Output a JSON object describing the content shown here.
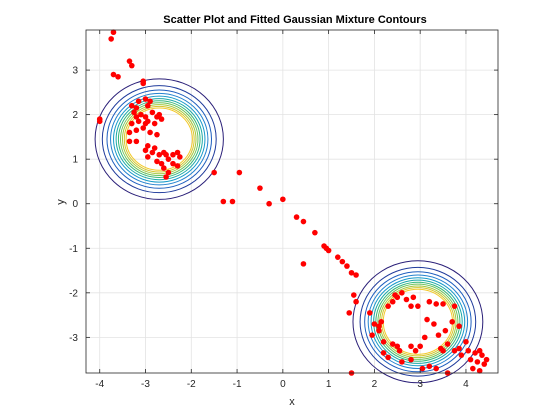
{
  "chart_data": {
    "type": "scatter",
    "title": "Scatter Plot and Fitted Gaussian Mixture Contours",
    "xlabel": "x",
    "ylabel": "y",
    "xlim": [
      -4.3,
      4.7
    ],
    "ylim": [
      -3.8,
      3.9
    ],
    "xticks": [
      -4,
      -3,
      -2,
      -1,
      0,
      1,
      2,
      3,
      4
    ],
    "yticks": [
      -3,
      -2,
      -1,
      0,
      1,
      2,
      3
    ],
    "grid": true,
    "colors": {
      "points": "#ff0000",
      "axes": "#262626",
      "grid": "#e3e3e3"
    },
    "contour_levels": [
      {
        "value": 0.01,
        "color": "#2a1f78"
      },
      {
        "value": 0.02,
        "color": "#1f3a9b"
      },
      {
        "value": 0.03,
        "color": "#1f5fbf"
      },
      {
        "value": 0.04,
        "color": "#2382cf"
      },
      {
        "value": 0.05,
        "color": "#189bc9"
      },
      {
        "value": 0.06,
        "color": "#1aa9a6"
      },
      {
        "value": 0.07,
        "color": "#35b779"
      },
      {
        "value": 0.08,
        "color": "#6cc25a"
      },
      {
        "value": 0.09,
        "color": "#a5c93e"
      },
      {
        "value": 0.1,
        "color": "#d6c62f"
      },
      {
        "value": 0.11,
        "color": "#f2c92a"
      }
    ],
    "components": [
      {
        "weight": 0.48,
        "mean": [
          -2.7,
          1.45
        ],
        "cov": [
          [
            0.3,
            0.0
          ],
          [
            0.0,
            0.28
          ]
        ]
      },
      {
        "weight": 0.52,
        "mean": [
          2.95,
          -2.65
        ],
        "cov": [
          [
            0.3,
            0.0
          ],
          [
            0.0,
            0.28
          ]
        ]
      }
    ],
    "series": [
      {
        "points": [
          [
            -3.7,
            3.85
          ],
          [
            -3.75,
            3.7
          ],
          [
            -3.35,
            3.2
          ],
          [
            -3.3,
            3.1
          ],
          [
            -3.05,
            2.75
          ],
          [
            -3.7,
            2.9
          ],
          [
            -3.6,
            2.85
          ],
          [
            -3.05,
            2.7
          ],
          [
            -4.0,
            1.9
          ],
          [
            -4.0,
            1.85
          ],
          [
            -3.3,
            2.2
          ],
          [
            -3.2,
            2.15
          ],
          [
            -3.15,
            2.3
          ],
          [
            -3.0,
            2.35
          ],
          [
            -2.9,
            2.3
          ],
          [
            -2.95,
            2.2
          ],
          [
            -3.25,
            2.05
          ],
          [
            -3.1,
            2.0
          ],
          [
            -3.2,
            1.95
          ],
          [
            -3.0,
            1.95
          ],
          [
            -2.85,
            2.05
          ],
          [
            -2.75,
            1.95
          ],
          [
            -2.7,
            2.0
          ],
          [
            -2.65,
            1.9
          ],
          [
            -3.3,
            1.8
          ],
          [
            -3.15,
            1.85
          ],
          [
            -3.0,
            1.8
          ],
          [
            -2.95,
            1.85
          ],
          [
            -2.8,
            1.8
          ],
          [
            -3.35,
            1.6
          ],
          [
            -3.2,
            1.65
          ],
          [
            -3.05,
            1.7
          ],
          [
            -2.9,
            1.6
          ],
          [
            -2.75,
            1.55
          ],
          [
            -3.2,
            1.4
          ],
          [
            -3.35,
            1.4
          ],
          [
            -2.95,
            1.3
          ],
          [
            -2.8,
            1.25
          ],
          [
            -3.0,
            1.2
          ],
          [
            -2.85,
            1.15
          ],
          [
            -2.95,
            1.05
          ],
          [
            -2.7,
            1.1
          ],
          [
            -2.6,
            1.15
          ],
          [
            -2.55,
            1.1
          ],
          [
            -2.4,
            1.1
          ],
          [
            -2.3,
            1.15
          ],
          [
            -2.25,
            1.05
          ],
          [
            -2.75,
            0.95
          ],
          [
            -2.65,
            0.9
          ],
          [
            -2.5,
            1.0
          ],
          [
            -2.4,
            0.9
          ],
          [
            -2.3,
            0.85
          ],
          [
            -2.6,
            0.8
          ],
          [
            -2.5,
            0.7
          ],
          [
            -2.55,
            0.6
          ],
          [
            -1.5,
            0.7
          ],
          [
            -1.3,
            0.05
          ],
          [
            -1.1,
            0.05
          ],
          [
            -0.95,
            0.7
          ],
          [
            -0.5,
            0.35
          ],
          [
            -0.3,
            0.0
          ],
          [
            0.0,
            0.1
          ],
          [
            0.3,
            -0.3
          ],
          [
            0.45,
            -0.4
          ],
          [
            0.7,
            -0.65
          ],
          [
            0.45,
            -1.35
          ],
          [
            0.9,
            -0.95
          ],
          [
            0.95,
            -1.0
          ],
          [
            1.0,
            -1.05
          ],
          [
            1.2,
            -1.2
          ],
          [
            1.3,
            -1.3
          ],
          [
            1.4,
            -1.4
          ],
          [
            1.5,
            -1.55
          ],
          [
            1.6,
            -1.6
          ],
          [
            1.55,
            -2.05
          ],
          [
            1.6,
            -2.2
          ],
          [
            1.45,
            -2.45
          ],
          [
            1.5,
            -3.8
          ],
          [
            1.9,
            -2.45
          ],
          [
            2.0,
            -2.7
          ],
          [
            2.1,
            -2.75
          ],
          [
            2.15,
            -2.65
          ],
          [
            2.3,
            -2.3
          ],
          [
            2.4,
            -2.2
          ],
          [
            2.45,
            -2.05
          ],
          [
            2.5,
            -2.1
          ],
          [
            2.6,
            -2.0
          ],
          [
            2.7,
            -2.15
          ],
          [
            2.85,
            -2.1
          ],
          [
            2.95,
            -2.3
          ],
          [
            2.8,
            -2.3
          ],
          [
            3.2,
            -2.2
          ],
          [
            3.35,
            -2.25
          ],
          [
            3.5,
            -2.25
          ],
          [
            3.75,
            -2.3
          ],
          [
            1.95,
            -2.95
          ],
          [
            2.1,
            -2.85
          ],
          [
            2.2,
            -3.1
          ],
          [
            2.2,
            -3.35
          ],
          [
            2.4,
            -3.15
          ],
          [
            2.5,
            -3.2
          ],
          [
            2.55,
            -3.3
          ],
          [
            2.3,
            -3.45
          ],
          [
            2.6,
            -3.55
          ],
          [
            2.8,
            -3.2
          ],
          [
            2.9,
            -3.3
          ],
          [
            3.0,
            -3.2
          ],
          [
            3.1,
            -3.0
          ],
          [
            3.15,
            -2.6
          ],
          [
            3.3,
            -2.7
          ],
          [
            3.4,
            -2.95
          ],
          [
            3.55,
            -2.85
          ],
          [
            3.7,
            -2.65
          ],
          [
            3.85,
            -2.75
          ],
          [
            3.45,
            -3.25
          ],
          [
            3.5,
            -3.3
          ],
          [
            3.6,
            -3.15
          ],
          [
            3.75,
            -3.3
          ],
          [
            3.85,
            -3.25
          ],
          [
            3.9,
            -3.4
          ],
          [
            4.0,
            -3.1
          ],
          [
            4.05,
            -3.3
          ],
          [
            4.1,
            -3.5
          ],
          [
            4.2,
            -3.35
          ],
          [
            4.25,
            -3.55
          ],
          [
            4.3,
            -3.3
          ],
          [
            4.35,
            -3.4
          ],
          [
            4.4,
            -3.6
          ],
          [
            4.45,
            -3.5
          ],
          [
            4.3,
            -3.75
          ],
          [
            4.15,
            -3.7
          ],
          [
            3.6,
            -3.8
          ],
          [
            3.35,
            -3.7
          ],
          [
            3.2,
            -3.65
          ],
          [
            3.05,
            -3.7
          ],
          [
            2.8,
            -3.5
          ]
        ]
      }
    ]
  }
}
